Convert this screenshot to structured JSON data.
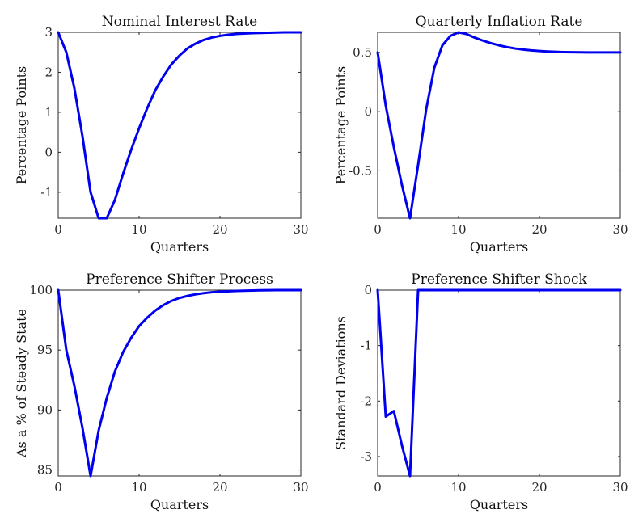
{
  "figure": {
    "line_color": "#0000ee"
  },
  "chart_data": [
    {
      "type": "line",
      "title": "Nominal Interest Rate",
      "xlabel": "Quarters",
      "ylabel": "Percentage Points",
      "xlim": [
        0,
        30
      ],
      "ylim": [
        -1.65,
        3
      ],
      "xticks": [
        0,
        10,
        20,
        30
      ],
      "yticks": [
        -1,
        0,
        1,
        2,
        3
      ],
      "x": [
        0,
        1,
        2,
        3,
        4,
        5,
        6,
        7,
        8,
        9,
        10,
        11,
        12,
        13,
        14,
        15,
        16,
        17,
        18,
        19,
        20,
        21,
        22,
        23,
        24,
        25,
        26,
        27,
        28,
        29,
        30
      ],
      "series": [
        {
          "values": [
            3.0,
            2.5,
            1.6,
            0.4,
            -1.0,
            -1.65,
            -1.65,
            -1.2,
            -0.55,
            0.05,
            0.6,
            1.1,
            1.55,
            1.9,
            2.2,
            2.42,
            2.6,
            2.72,
            2.81,
            2.87,
            2.91,
            2.94,
            2.96,
            2.97,
            2.98,
            2.985,
            2.99,
            2.995,
            3.0,
            3.0,
            3.0
          ]
        }
      ]
    },
    {
      "type": "line",
      "title": "Quarterly Inflation Rate",
      "xlabel": "Quarters",
      "ylabel": "Percentage Points",
      "xlim": [
        0,
        30
      ],
      "ylim": [
        -0.9,
        0.67
      ],
      "xticks": [
        0,
        10,
        20,
        30
      ],
      "yticks": [
        -0.5,
        0,
        0.5
      ],
      "x": [
        0,
        1,
        2,
        3,
        4,
        5,
        6,
        7,
        8,
        9,
        10,
        11,
        12,
        13,
        14,
        15,
        16,
        17,
        18,
        19,
        20,
        21,
        22,
        23,
        24,
        25,
        26,
        27,
        28,
        29,
        30
      ],
      "series": [
        {
          "values": [
            0.5,
            0.05,
            -0.3,
            -0.62,
            -0.9,
            -0.45,
            0.02,
            0.37,
            0.56,
            0.64,
            0.67,
            0.655,
            0.625,
            0.6,
            0.578,
            0.56,
            0.545,
            0.533,
            0.524,
            0.517,
            0.512,
            0.508,
            0.505,
            0.503,
            0.502,
            0.501,
            0.5,
            0.5,
            0.5,
            0.5,
            0.5
          ]
        }
      ]
    },
    {
      "type": "line",
      "title": "Preference Shifter Process",
      "xlabel": "Quarters",
      "ylabel": "As a % of Steady State",
      "xlim": [
        0,
        30
      ],
      "ylim": [
        84.5,
        100
      ],
      "xticks": [
        0,
        10,
        20,
        30
      ],
      "yticks": [
        85,
        90,
        95,
        100
      ],
      "x": [
        0,
        1,
        2,
        3,
        4,
        5,
        6,
        7,
        8,
        9,
        10,
        11,
        12,
        13,
        14,
        15,
        16,
        17,
        18,
        19,
        20,
        21,
        22,
        23,
        24,
        25,
        26,
        27,
        28,
        29,
        30
      ],
      "series": [
        {
          "values": [
            100,
            95,
            92,
            88.5,
            84.5,
            88.3,
            91.0,
            93.2,
            94.8,
            96.0,
            97.0,
            97.7,
            98.3,
            98.75,
            99.1,
            99.35,
            99.52,
            99.65,
            99.75,
            99.82,
            99.87,
            99.9,
            99.93,
            99.95,
            99.97,
            99.98,
            99.99,
            100,
            100,
            100,
            100
          ]
        }
      ]
    },
    {
      "type": "line",
      "title": "Preference Shifter Shock",
      "xlabel": "Quarters",
      "ylabel": "Standard Deviations",
      "xlim": [
        0,
        30
      ],
      "ylim": [
        -3.35,
        0
      ],
      "xticks": [
        0,
        10,
        20,
        30
      ],
      "yticks": [
        -3,
        -2,
        -1,
        0
      ],
      "x": [
        0,
        1,
        2,
        3,
        4,
        5,
        6,
        7,
        8,
        9,
        10,
        11,
        12,
        13,
        14,
        15,
        16,
        17,
        18,
        19,
        20,
        21,
        22,
        23,
        24,
        25,
        26,
        27,
        28,
        29,
        30
      ],
      "series": [
        {
          "values": [
            0,
            -2.28,
            -2.18,
            -2.8,
            -3.35,
            0,
            0,
            0,
            0,
            0,
            0,
            0,
            0,
            0,
            0,
            0,
            0,
            0,
            0,
            0,
            0,
            0,
            0,
            0,
            0,
            0,
            0,
            0,
            0,
            0,
            0
          ]
        }
      ]
    }
  ]
}
